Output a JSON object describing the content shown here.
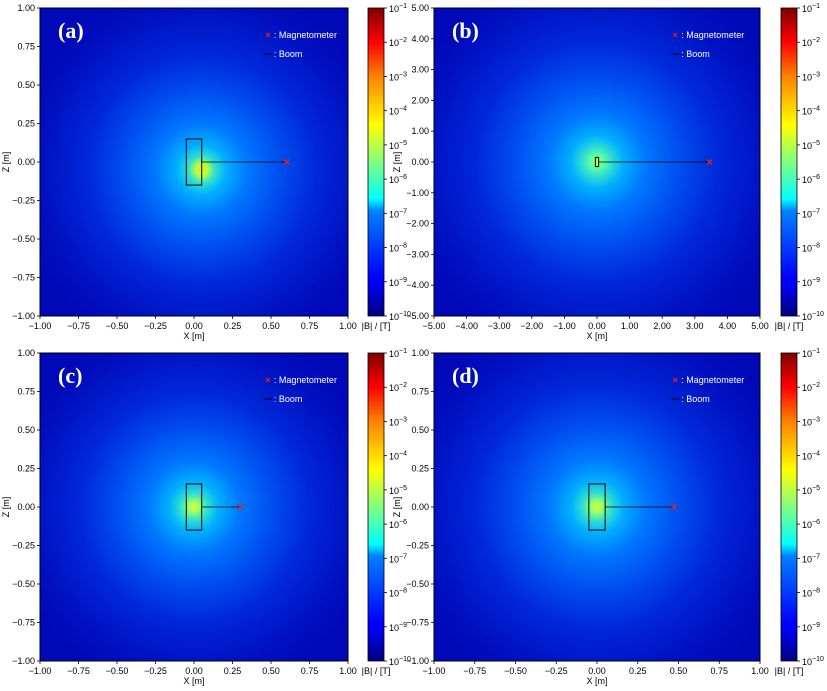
{
  "chart_data": [
    {
      "type": "heatmap",
      "panel_label": "(a)",
      "xlabel": "X [m]",
      "ylabel": "Z [m]",
      "xlim": [
        -1,
        1
      ],
      "ylim": [
        -1,
        1
      ],
      "xticks": [
        "−1.00",
        "−0.75",
        "−0.50",
        "−0.25",
        "0.00",
        "0.25",
        "0.50",
        "0.75",
        "1.00"
      ],
      "yticks": [
        "1.00",
        "0.75",
        "0.50",
        "0.25",
        "0.00",
        "−0.25",
        "−0.50",
        "−0.75",
        "−1.00"
      ],
      "colorbar_label": "|B| / [T]",
      "colorbar_range": [
        1e-10,
        0.1
      ],
      "colorbar_scale": "log",
      "colormap": "jet",
      "legend": [
        "× : Magnetometer",
        "— : Boom"
      ],
      "legend_placement": "top-right",
      "spacecraft_body": {
        "x_range": [
          -0.05,
          0.05
        ],
        "z_range": [
          -0.15,
          0.15
        ]
      },
      "field_source": {
        "x": 0.05,
        "z": -0.05
      },
      "boom": {
        "from": [
          0.05,
          0.0
        ],
        "to": [
          0.6,
          0.0
        ]
      },
      "magnetometer": {
        "x": 0.6,
        "z": 0.0
      }
    },
    {
      "type": "heatmap",
      "panel_label": "(b)",
      "xlabel": "X [m]",
      "ylabel": "Z [m]",
      "xlim": [
        -5,
        5
      ],
      "ylim": [
        -5,
        5
      ],
      "xticks": [
        "−5.00",
        "−4.00",
        "−3.00",
        "−2.00",
        "−1.00",
        "0.00",
        "1.00",
        "2.00",
        "3.00",
        "4.00",
        "5.00"
      ],
      "yticks": [
        "5.00",
        "4.00",
        "3.00",
        "2.00",
        "1.00",
        "0.00",
        "−1.00",
        "−2.00",
        "−3.00",
        "−4.00",
        "−5.00"
      ],
      "colorbar_label": "|B| / [T]",
      "colorbar_range": [
        1e-10,
        0.1
      ],
      "colorbar_scale": "log",
      "colormap": "jet",
      "legend": [
        "× : Magnetometer",
        "— : Boom"
      ],
      "legend_placement": "top-right",
      "spacecraft_body": {
        "x_range": [
          -0.05,
          0.05
        ],
        "z_range": [
          -0.15,
          0.15
        ]
      },
      "field_source": {
        "x": 0.0,
        "z": 0.0
      },
      "boom": {
        "from": [
          0.05,
          0.0
        ],
        "to": [
          3.45,
          0.0
        ]
      },
      "magnetometer": {
        "x": 3.45,
        "z": 0.0
      }
    },
    {
      "type": "heatmap",
      "panel_label": "(c)",
      "xlabel": "X [m]",
      "ylabel": "Z [m]",
      "xlim": [
        -1,
        1
      ],
      "ylim": [
        -1,
        1
      ],
      "xticks": [
        "−1.00",
        "−0.75",
        "−0.50",
        "−0.25",
        "0.00",
        "0.25",
        "0.50",
        "0.75",
        "1.00"
      ],
      "yticks": [
        "1.00",
        "0.75",
        "0.50",
        "0.25",
        "0.00",
        "−0.25",
        "−0.50",
        "−0.75",
        "−1.00"
      ],
      "colorbar_label": "|B| / [T]",
      "colorbar_range": [
        1e-10,
        0.1
      ],
      "colorbar_scale": "log",
      "colormap": "jet",
      "legend": [
        "× : Magnetometer",
        "— : Boom"
      ],
      "legend_placement": "top-right",
      "spacecraft_body": {
        "x_range": [
          -0.05,
          0.05
        ],
        "z_range": [
          -0.15,
          0.15
        ]
      },
      "field_source": {
        "x": 0.0,
        "z": 0.0
      },
      "boom": {
        "from": [
          0.05,
          0.0
        ],
        "to": [
          0.3,
          0.0
        ]
      },
      "magnetometer": {
        "x": 0.3,
        "z": 0.0
      }
    },
    {
      "type": "heatmap",
      "panel_label": "(d)",
      "xlabel": "X [m]",
      "ylabel": "Z [m]",
      "xlim": [
        -1,
        1
      ],
      "ylim": [
        -1,
        1
      ],
      "xticks": [
        "−1.00",
        "−0.75",
        "−0.50",
        "−0.25",
        "0.00",
        "0.25",
        "0.50",
        "0.75",
        "1.00"
      ],
      "yticks": [
        "1.00",
        "0.75",
        "0.50",
        "0.25",
        "0.00",
        "−0.25",
        "−0.50",
        "−0.75",
        "−1.00"
      ],
      "colorbar_label": "|B| / [T]",
      "colorbar_range": [
        1e-10,
        0.1
      ],
      "colorbar_scale": "log",
      "colormap": "jet",
      "legend": [
        "× : Magnetometer",
        "— : Boom"
      ],
      "legend_placement": "top-right",
      "spacecraft_body": {
        "x_range": [
          -0.05,
          0.05
        ],
        "z_range": [
          -0.15,
          0.15
        ]
      },
      "field_source": {
        "x": 0.0,
        "z": 0.0
      },
      "boom": {
        "from": [
          0.05,
          0.0
        ],
        "to": [
          0.47,
          0.0
        ]
      },
      "magnetometer": {
        "x": 0.47,
        "z": 0.0
      }
    }
  ]
}
